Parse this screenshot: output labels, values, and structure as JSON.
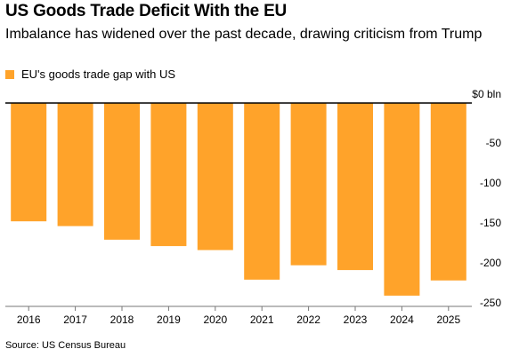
{
  "header": {
    "title": "US Goods Trade Deficit With the EU",
    "subtitle": "Imbalance has widened over the past decade, drawing criticism from Trump"
  },
  "legend": {
    "label": "EU's goods trade gap with US"
  },
  "footer": {
    "source": "Source: US Census Bureau"
  },
  "colors": {
    "bar": "#FFA32A",
    "zero_line": "#000000",
    "axis": "#777777"
  },
  "chart_data": {
    "type": "bar",
    "categories": [
      "2016",
      "2017",
      "2018",
      "2019",
      "2020",
      "2021",
      "2022",
      "2023",
      "2024",
      "2025"
    ],
    "series": [
      {
        "name": "EU's goods trade gap with US",
        "values": [
          -148,
          -154,
          -171,
          -179,
          -184,
          -221,
          -203,
          -209,
          -241,
          -222
        ]
      }
    ],
    "ylim": [
      -255,
      0
    ],
    "yticks": [
      0,
      -50,
      -100,
      -150,
      -200,
      -250
    ],
    "ytick_labels": [
      "$0 bln",
      "-50",
      "-100",
      "-150",
      "-200",
      "-250"
    ],
    "y_axis_position": "right",
    "grid": false,
    "legend_position": "top-left"
  }
}
